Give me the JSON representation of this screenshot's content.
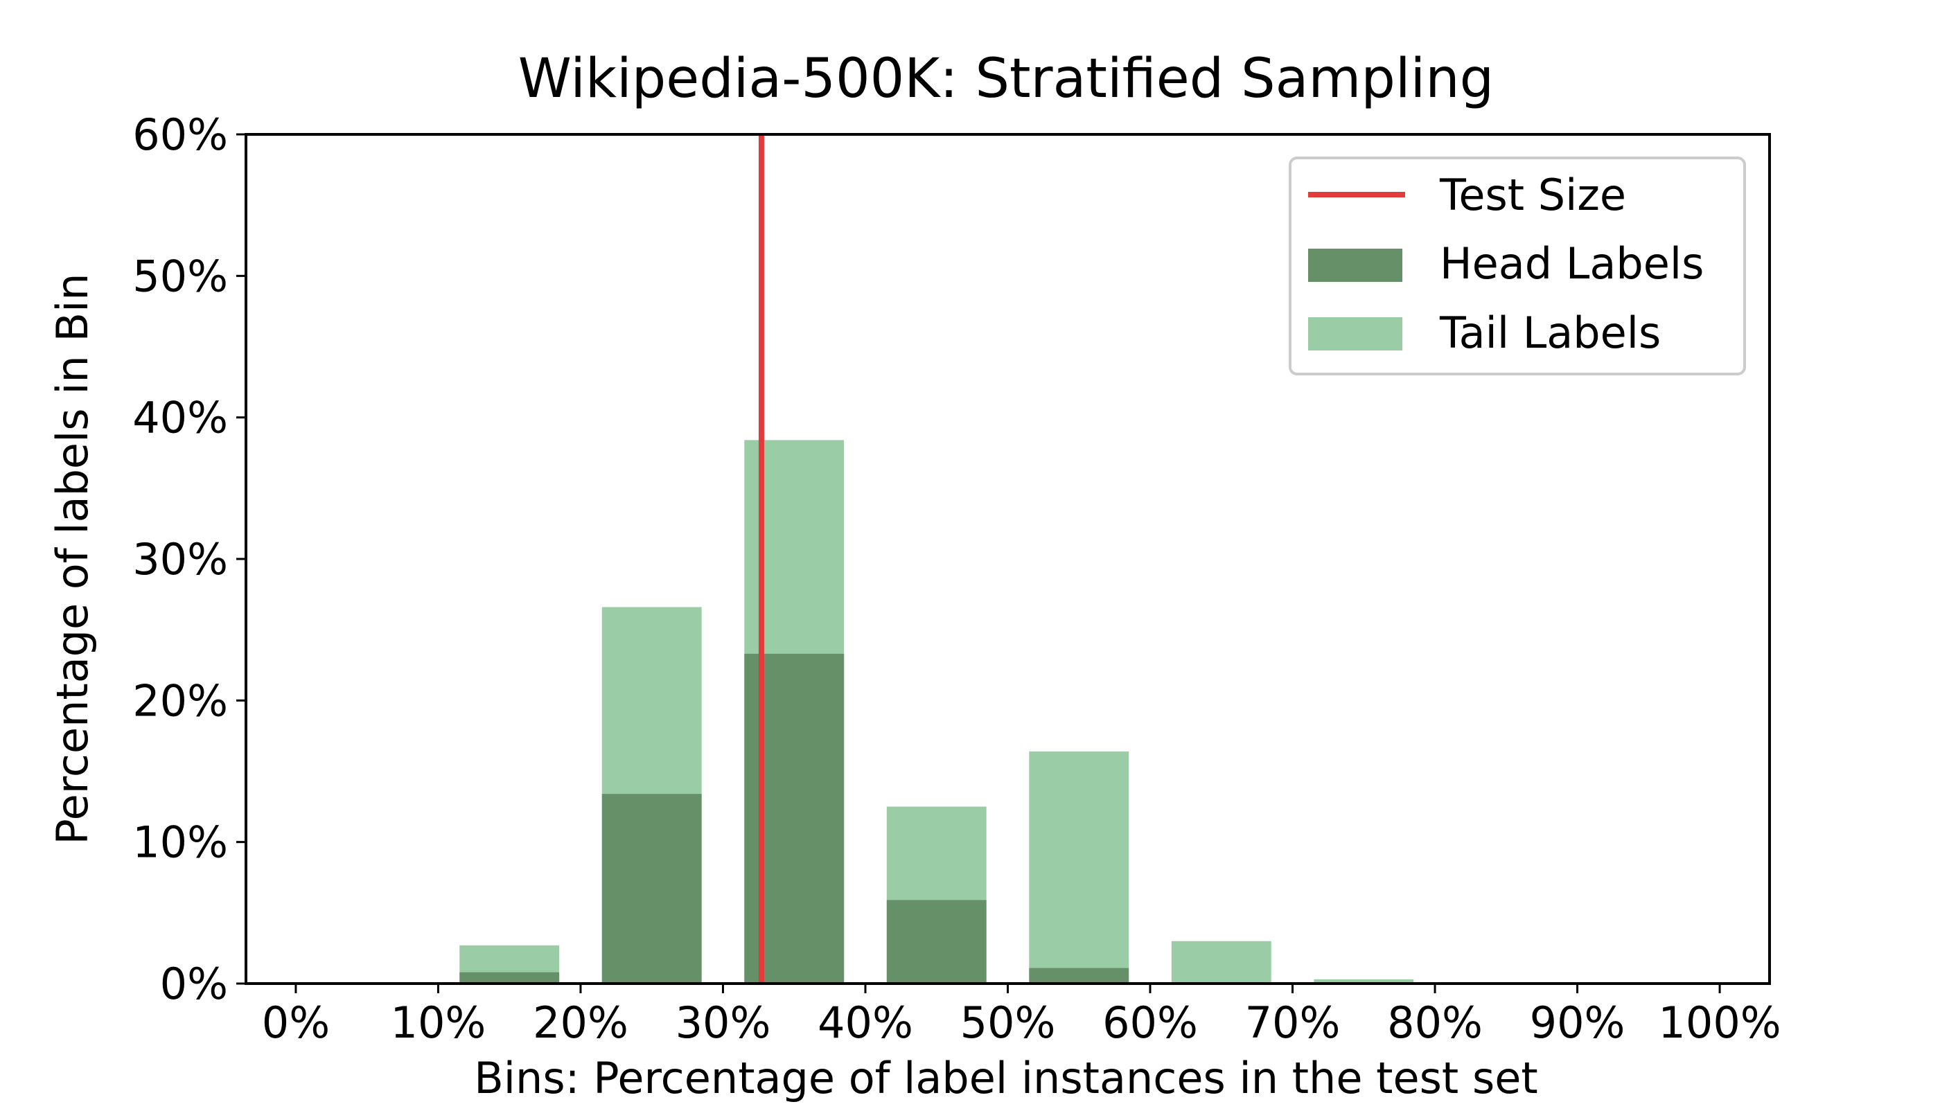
{
  "chart_data": {
    "type": "bar",
    "title": "Wikipedia-500K: Stratified Sampling",
    "xlabel": "Bins: Percentage of label instances in the test set",
    "ylabel": "Percentage of labels in Bin",
    "xlim": [
      0,
      100
    ],
    "ylim": [
      0,
      60
    ],
    "x_ticks": [
      "0%",
      "10%",
      "20%",
      "30%",
      "40%",
      "50%",
      "60%",
      "70%",
      "80%",
      "90%",
      "100%"
    ],
    "y_ticks": [
      "0%",
      "10%",
      "20%",
      "30%",
      "40%",
      "50%",
      "60%"
    ],
    "bins": [
      "0-10%",
      "10-20%",
      "20-30%",
      "30-40%",
      "40-50%",
      "50-60%",
      "60-70%",
      "70-80%",
      "80-90%",
      "90-100%"
    ],
    "series": [
      {
        "name": "Head Labels",
        "color": "#659068",
        "values": [
          0,
          0.8,
          13.4,
          23.3,
          5.9,
          1.1,
          0,
          0,
          0,
          0
        ]
      },
      {
        "name": "Tail Labels",
        "color": "#9acca5",
        "values": [
          0,
          2.7,
          26.6,
          38.4,
          12.5,
          16.4,
          3.0,
          0.3,
          0,
          0
        ]
      }
    ],
    "reference_line": {
      "name": "Test Size",
      "x": 32.7,
      "color": "#e23b3b"
    },
    "legend": {
      "position": "top-right",
      "entries": [
        {
          "label": "Test Size",
          "kind": "line",
          "color": "#e23b3b"
        },
        {
          "label": "Head Labels",
          "kind": "patch",
          "color": "#659068"
        },
        {
          "label": "Tail Labels",
          "kind": "patch",
          "color": "#9acca5"
        }
      ]
    },
    "grid": false
  }
}
